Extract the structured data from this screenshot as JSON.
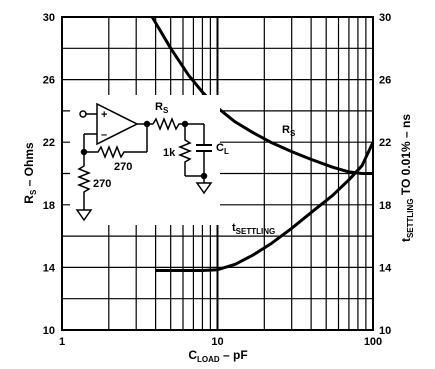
{
  "chart_data": {
    "type": "line",
    "x_scale": "log",
    "xlim": [
      1,
      100
    ],
    "ylim_left": [
      10,
      30
    ],
    "ylim_right": [
      10,
      30
    ],
    "grid": true,
    "x_ticks": [
      "1",
      "10",
      "100"
    ],
    "y_ticks_left": [
      "10",
      "14",
      "18",
      "22",
      "26",
      "30"
    ],
    "y_ticks_right": [
      "10",
      "14",
      "18",
      "22",
      "26",
      "30"
    ],
    "xlabel": {
      "main": "C",
      "sub": "LOAD",
      "rest": " – pF"
    },
    "ylabel_left": {
      "main": "R",
      "sub": "S",
      "rest": " – Ohms"
    },
    "ylabel_right": {
      "main": "t",
      "sub": "SETTLING",
      "rest": " TO 0.01% – ns"
    },
    "series": [
      {
        "name": "R_S",
        "label": {
          "main": "R",
          "sub": "S"
        },
        "axis": "left",
        "x": [
          3.8,
          5,
          6.5,
          8,
          10,
          13,
          17,
          22,
          30,
          40,
          55,
          70,
          85,
          100
        ],
        "y": [
          30.0,
          28.0,
          26.3,
          25.2,
          24.2,
          23.3,
          22.6,
          22.0,
          21.4,
          20.9,
          20.4,
          20.1,
          20.0,
          20.0
        ]
      },
      {
        "name": "t_SETTLING",
        "label": {
          "main": "t",
          "sub": "SETTLING"
        },
        "axis": "right",
        "x": [
          4,
          6,
          8,
          10,
          13,
          17,
          22,
          30,
          40,
          55,
          70,
          85,
          100
        ],
        "y": [
          13.8,
          13.8,
          13.8,
          13.85,
          14.2,
          14.8,
          15.5,
          16.5,
          17.5,
          18.6,
          19.6,
          20.5,
          22.0
        ]
      }
    ],
    "inset_schematic": {
      "components": [
        "op-amp",
        "R_S",
        "C_L",
        "1k",
        "270",
        "270"
      ],
      "labels": {
        "rs": {
          "main": "R",
          "sub": "S"
        },
        "cl": {
          "main": "C",
          "sub": "L"
        },
        "r1k": "1k",
        "r270_feedback": "270",
        "r270_ground": "270",
        "plus": "+",
        "minus": "–"
      }
    }
  }
}
